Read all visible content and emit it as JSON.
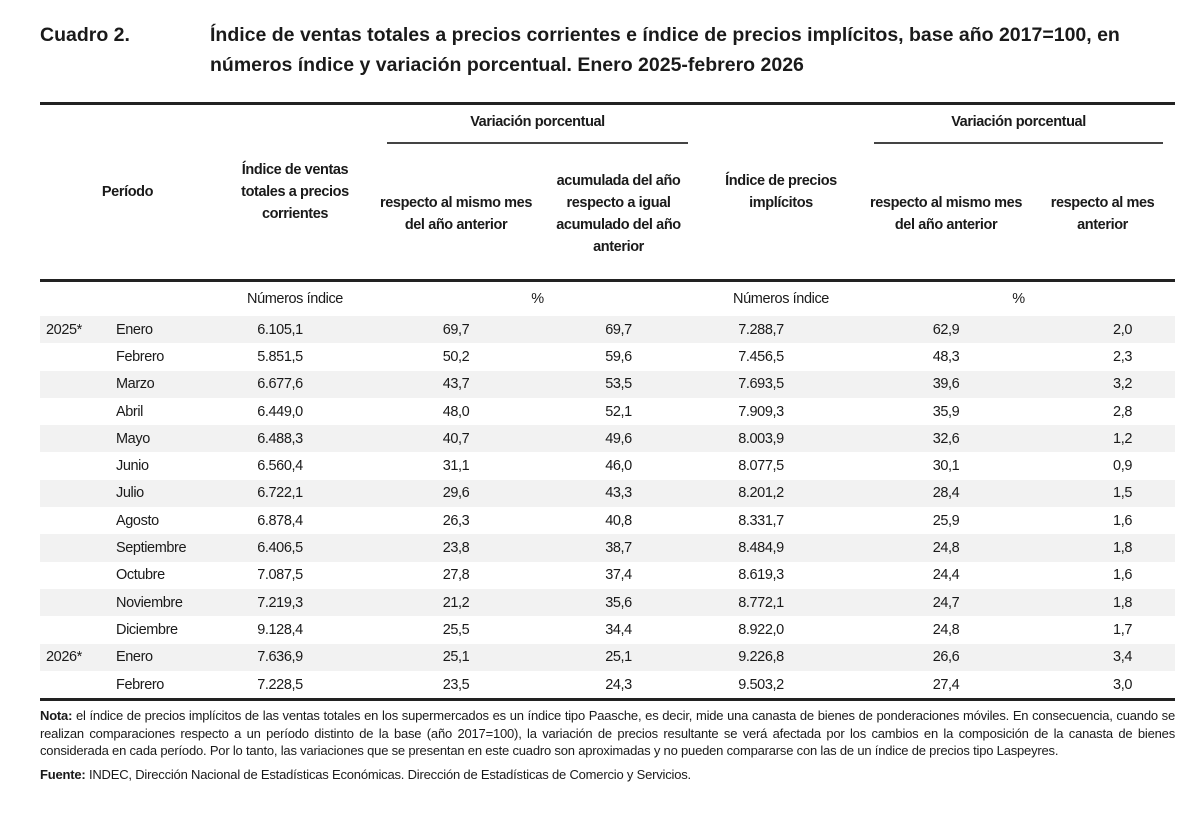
{
  "title": {
    "label": "Cuadro 2.",
    "text": "Índice de ventas totales a precios corrientes e índice de precios implícitos, base año 2017=100, en números índice y variación porcentual. Enero 2025-febrero 2026"
  },
  "headers": {
    "periodo": "Período",
    "indice_ventas": "Índice de ventas totales a precios corrientes",
    "var_group": "Variación porcentual",
    "var_mismo_mes": "respecto al mismo mes del año anterior",
    "var_acumulada": "acumulada del año respecto a igual acumulado del año anterior",
    "indice_precios": "Índice de precios implícitos",
    "var_group2": "Variación porcentual",
    "var_mismo_mes2": "respecto al mismo mes del año anterior",
    "var_mes_anterior": "respecto al mes anterior"
  },
  "units": [
    "Números índice",
    "%",
    "Números índice",
    "%"
  ],
  "rows": [
    {
      "year": "2025*",
      "month": "Enero",
      "v": [
        "6.105,1",
        "69,7",
        "69,7",
        "7.288,7",
        "62,9",
        "2,0"
      ]
    },
    {
      "year": "",
      "month": "Febrero",
      "v": [
        "5.851,5",
        "50,2",
        "59,6",
        "7.456,5",
        "48,3",
        "2,3"
      ]
    },
    {
      "year": "",
      "month": "Marzo",
      "v": [
        "6.677,6",
        "43,7",
        "53,5",
        "7.693,5",
        "39,6",
        "3,2"
      ]
    },
    {
      "year": "",
      "month": "Abril",
      "v": [
        "6.449,0",
        "48,0",
        "52,1",
        "7.909,3",
        "35,9",
        "2,8"
      ]
    },
    {
      "year": "",
      "month": "Mayo",
      "v": [
        "6.488,3",
        "40,7",
        "49,6",
        "8.003,9",
        "32,6",
        "1,2"
      ]
    },
    {
      "year": "",
      "month": "Junio",
      "v": [
        "6.560,4",
        "31,1",
        "46,0",
        "8.077,5",
        "30,1",
        "0,9"
      ]
    },
    {
      "year": "",
      "month": "Julio",
      "v": [
        "6.722,1",
        "29,6",
        "43,3",
        "8.201,2",
        "28,4",
        "1,5"
      ]
    },
    {
      "year": "",
      "month": "Agosto",
      "v": [
        "6.878,4",
        "26,3",
        "40,8",
        "8.331,7",
        "25,9",
        "1,6"
      ]
    },
    {
      "year": "",
      "month": "Septiembre",
      "v": [
        "6.406,5",
        "23,8",
        "38,7",
        "8.484,9",
        "24,8",
        "1,8"
      ]
    },
    {
      "year": "",
      "month": "Octubre",
      "v": [
        "7.087,5",
        "27,8",
        "37,4",
        "8.619,3",
        "24,4",
        "1,6"
      ]
    },
    {
      "year": "",
      "month": "Noviembre",
      "v": [
        "7.219,3",
        "21,2",
        "35,6",
        "8.772,1",
        "24,7",
        "1,8"
      ]
    },
    {
      "year": "",
      "month": "Diciembre",
      "v": [
        "9.128,4",
        "25,5",
        "34,4",
        "8.922,0",
        "24,8",
        "1,7"
      ]
    },
    {
      "year": "2026*",
      "month": "Enero",
      "v": [
        "7.636,9",
        "25,1",
        "25,1",
        "9.226,8",
        "26,6",
        "3,4"
      ]
    },
    {
      "year": "",
      "month": "Febrero",
      "v": [
        "7.228,5",
        "23,5",
        "24,3",
        "9.503,2",
        "27,4",
        "3,0"
      ]
    }
  ],
  "notes": {
    "nota_label": "Nota:",
    "nota_text": " el índice de precios implícitos de las ventas totales en los supermercados es un índice tipo Paasche, es decir, mide una canasta de bienes de ponderaciones móviles. En consecuencia, cuando se realizan comparaciones respecto a un período distinto de la base (año 2017=100), la variación de precios resultante se verá afectada por los cambios en la composición de la canasta de bienes considerada en cada período. Por lo tanto, las variaciones que se presentan en este cuadro son aproximadas y no pueden compararse con las de un índice de precios tipo Laspeyres.",
    "fuente_label": "Fuente:",
    "fuente_text": " INDEC, Dirección Nacional de Estadísticas Económicas. Dirección de Estadísticas de Comercio y Servicios."
  }
}
